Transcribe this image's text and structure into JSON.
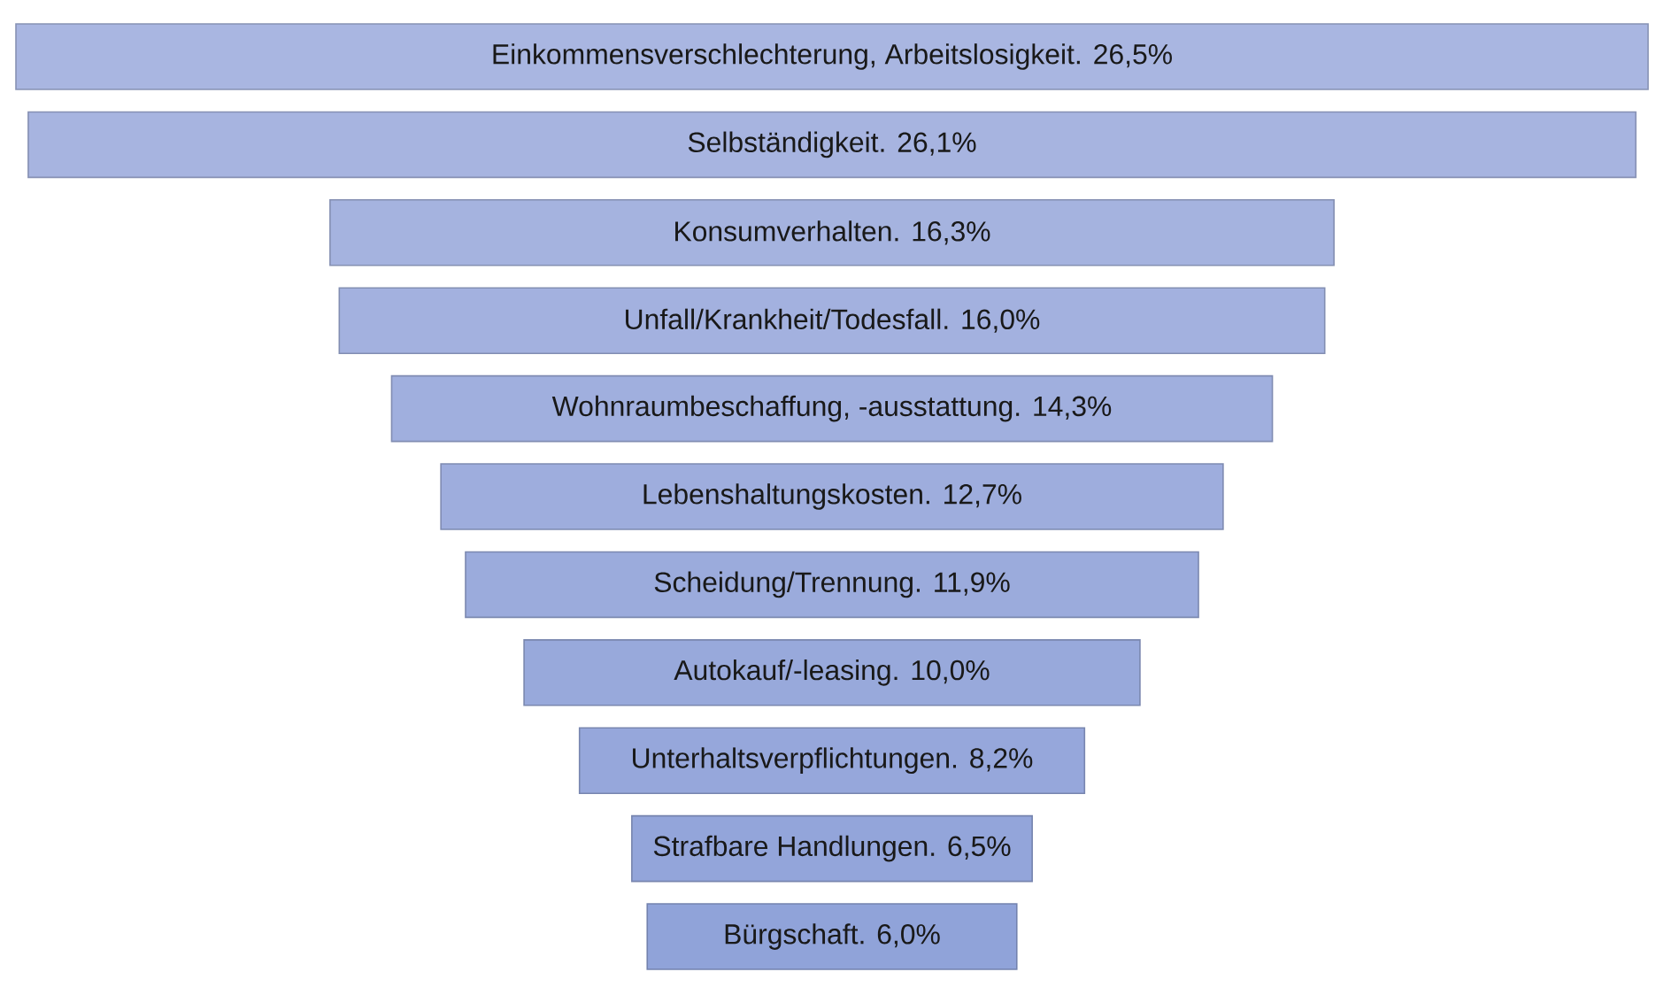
{
  "chart_data": {
    "type": "other",
    "categories": [
      "Einkommensverschlechterung, Arbeitslosigkeit.",
      "Selbständigkeit.",
      "Konsumverhalten.",
      "Unfall/Krankheit/Todesfall.",
      "Wohnraumbeschaffung, -ausstattung.",
      "Lebenshaltungskosten.",
      "Scheidung/Trennung.",
      "Autokauf/-leasing.",
      "Unterhaltsverpflichtungen.",
      "Strafbare Handlungen.",
      "Bürgschaft."
    ],
    "values": [
      26.5,
      26.1,
      16.3,
      16.0,
      14.3,
      12.7,
      11.9,
      10.0,
      8.2,
      6.5,
      6.0
    ],
    "value_labels": [
      "26,5%",
      "26,1%",
      "16,3%",
      "16,0%",
      "14,3%",
      "12,7%",
      "11,9%",
      "10,0%",
      "8,2%",
      "6,5%",
      "6,0%"
    ],
    "colors": [
      "#a9b6e1",
      "#a7b4e0",
      "#a5b3df",
      "#a3b1df",
      "#a0afde",
      "#9eaddd",
      "#9babdc",
      "#98a9db",
      "#96a7db",
      "#93a5da",
      "#90a3d9"
    ]
  }
}
